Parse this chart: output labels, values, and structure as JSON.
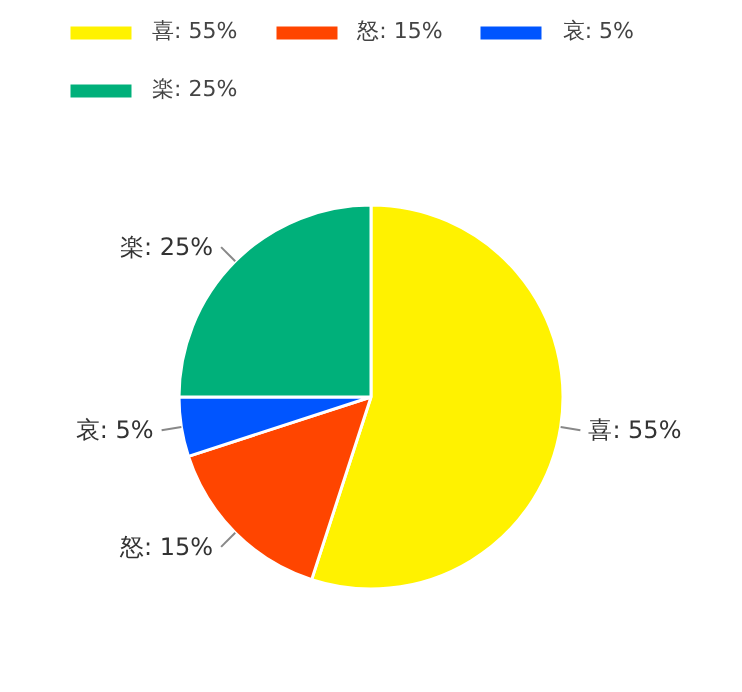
{
  "chart_data": {
    "type": "pie",
    "categories": [
      "喜: 55%",
      "怒: 15%",
      "哀: 5%",
      "楽: 25%"
    ],
    "values": [
      55,
      15,
      5,
      25
    ],
    "colors": [
      "#fff200",
      "#ff4500",
      "#0055ff",
      "#00b07a"
    ],
    "legend": "top"
  }
}
